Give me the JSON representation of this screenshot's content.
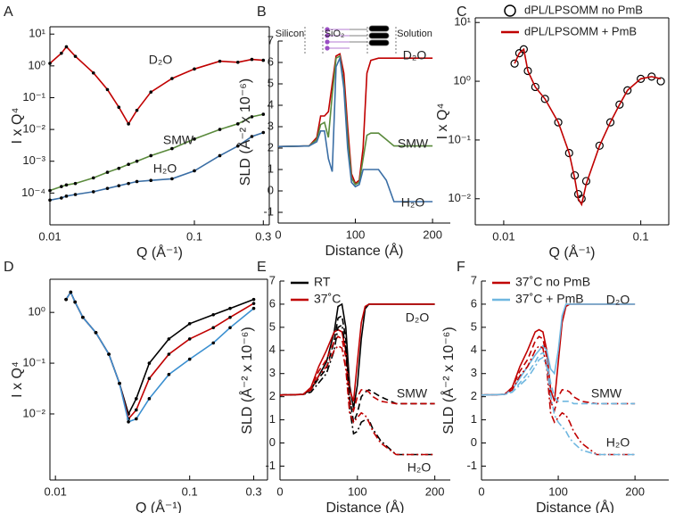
{
  "chart_data": [
    {
      "type": "line",
      "panel": "A",
      "xlabel": "Q (Å⁻¹)",
      "ylabel": "I x Q⁴",
      "xscale": "log",
      "yscale": "log",
      "box": true,
      "xlim": [
        0.01,
        0.33
      ],
      "ylim": [
        1e-05,
        17
      ],
      "xticks": [
        0.01,
        0.1,
        0.3
      ],
      "yticks": [
        {
          "value": 0.0001,
          "label": "10⁻⁴"
        },
        {
          "value": 0.001,
          "label": "10⁻³"
        },
        {
          "value": 0.01,
          "label": "10⁻²"
        },
        {
          "value": 0.1,
          "label": "10⁻¹"
        },
        {
          "value": 1,
          "label": "10⁰"
        },
        {
          "value": 10,
          "label": "10¹"
        }
      ],
      "x": [
        0.01,
        0.012,
        0.013,
        0.015,
        0.02,
        0.025,
        0.03,
        0.035,
        0.04,
        0.05,
        0.07,
        0.1,
        0.15,
        0.2,
        0.25,
        0.3
      ],
      "series": [
        {
          "name": "D₂O",
          "color": "#c00000",
          "marker": "dot",
          "values": [
            1.2,
            2.5,
            4,
            2,
            0.6,
            0.18,
            0.05,
            0.015,
            0.04,
            0.15,
            0.4,
            0.8,
            1.4,
            1.3,
            1.6,
            1.5
          ]
        },
        {
          "name": "SMW",
          "color": "#5a8a3c",
          "marker": "dot",
          "values": [
            0.00012,
            0.00016,
            0.00018,
            0.0002,
            0.0003,
            0.00045,
            0.0006,
            0.0008,
            0.001,
            0.0015,
            0.0025,
            0.005,
            0.01,
            0.015,
            0.025,
            0.03
          ]
        },
        {
          "name": "H₂O",
          "color": "#3a6ea5",
          "marker": "dot",
          "values": [
            6e-05,
            7e-05,
            8e-05,
            9e-05,
            0.00011,
            0.00014,
            0.00017,
            0.0002,
            0.00023,
            0.00025,
            0.00028,
            0.0005,
            0.0015,
            0.003,
            0.006,
            0.008
          ]
        }
      ]
    },
    {
      "type": "line",
      "panel": "B",
      "xlabel": "Distance (Å)",
      "ylabel": "SLD (Å⁻² x 10⁻⁶)",
      "box": false,
      "annotations": [
        "Silicon",
        "SiO₂",
        "Solution"
      ],
      "xlim": [
        0,
        223
      ],
      "ylim": [
        -1.5,
        7
      ],
      "xticks": [
        0,
        100,
        200
      ],
      "yticks": [
        -1,
        0,
        1,
        2,
        3,
        4,
        5,
        6,
        7
      ],
      "x": [
        0,
        40,
        50,
        55,
        60,
        65,
        70,
        75,
        80,
        85,
        90,
        95,
        100,
        105,
        110,
        115,
        120,
        130,
        140,
        150,
        200
      ],
      "series": [
        {
          "name": "D₂O",
          "color": "#c00000",
          "values": [
            2.07,
            2.1,
            2.5,
            3.5,
            3.5,
            3.7,
            5,
            6.3,
            6.4,
            5.5,
            3,
            0.8,
            0.35,
            0.5,
            2,
            5.5,
            6.1,
            6.2,
            6.2,
            6.2,
            6.2
          ]
        },
        {
          "name": "SMW",
          "color": "#5a8a3c",
          "values": [
            2.07,
            2.1,
            2.4,
            3.1,
            3.2,
            2.5,
            4.5,
            6.2,
            6.3,
            5,
            2.5,
            0.6,
            0.3,
            0.4,
            1.5,
            2.6,
            2.7,
            2.7,
            2.4,
            2.1,
            2.1
          ]
        },
        {
          "name": "H₂O",
          "color": "#3a6ea5",
          "values": [
            2.07,
            2.1,
            2.3,
            2.8,
            2.8,
            1.5,
            0.9,
            5.8,
            6.2,
            4.8,
            2,
            0.4,
            0.2,
            0.3,
            1,
            1,
            1,
            1,
            0.5,
            -0.5,
            -0.5
          ]
        }
      ]
    },
    {
      "type": "line",
      "panel": "C",
      "xlabel": "Q (Å⁻¹)",
      "ylabel": "I x Q⁴",
      "xscale": "log",
      "yscale": "log",
      "box": true,
      "xlim": [
        0.0062,
        0.16
      ],
      "ylim": [
        0.0036,
        12
      ],
      "xticks": [
        0.01,
        0.1
      ],
      "yticks": [
        {
          "value": 0.01,
          "label": "10⁻²"
        },
        {
          "value": 0.1,
          "label": "10⁻¹"
        },
        {
          "value": 1,
          "label": "10⁰"
        },
        {
          "value": 10,
          "label": "10¹"
        }
      ],
      "legend": "top-right",
      "x": [
        0.012,
        0.013,
        0.014,
        0.015,
        0.017,
        0.02,
        0.025,
        0.03,
        0.033,
        0.035,
        0.037,
        0.04,
        0.05,
        0.06,
        0.07,
        0.08,
        0.1,
        0.12,
        0.14
      ],
      "series": [
        {
          "name": "dPL/LPSOMM no PmB",
          "color": "#000000",
          "marker": "open-circle",
          "line": false,
          "values": [
            2,
            3,
            3.5,
            1.5,
            0.8,
            0.5,
            0.2,
            0.06,
            0.025,
            0.012,
            0.01,
            0.02,
            0.08,
            0.2,
            0.4,
            0.7,
            1.1,
            1.2,
            1
          ]
        },
        {
          "name": "dPL/LPSOMM + PmB",
          "color": "#c00000",
          "values": [
            2,
            3,
            3.5,
            1.5,
            0.8,
            0.5,
            0.2,
            0.06,
            0.022,
            0.01,
            0.008,
            0.018,
            0.08,
            0.2,
            0.4,
            0.7,
            1.1,
            1.2,
            1.1
          ]
        }
      ]
    },
    {
      "type": "line",
      "panel": "D",
      "xlabel": "Q (Å⁻¹)",
      "ylabel": "I x Q⁴",
      "xscale": "log",
      "yscale": "log",
      "box": true,
      "xlim": [
        0.0091,
        0.38
      ],
      "ylim": [
        0.0005,
        4.5
      ],
      "xticks": [
        0.01,
        0.1,
        0.3
      ],
      "yticks": [
        {
          "value": 0.01,
          "label": "10⁻²"
        },
        {
          "value": 0.1,
          "label": "10⁻¹"
        },
        {
          "value": 1,
          "label": "10⁰"
        }
      ],
      "x": [
        0.012,
        0.013,
        0.014,
        0.016,
        0.02,
        0.025,
        0.03,
        0.035,
        0.04,
        0.05,
        0.07,
        0.1,
        0.15,
        0.2,
        0.3
      ],
      "series": [
        {
          "color": "#000000",
          "marker": "dot",
          "values": [
            1.8,
            2.5,
            1.6,
            0.8,
            0.4,
            0.15,
            0.04,
            0.01,
            0.02,
            0.1,
            0.3,
            0.6,
            0.9,
            1.2,
            1.8
          ]
        },
        {
          "color": "#c00000",
          "marker": "dot",
          "values": [
            1.8,
            2.5,
            1.6,
            0.8,
            0.4,
            0.15,
            0.04,
            0.008,
            0.012,
            0.05,
            0.15,
            0.3,
            0.5,
            0.8,
            1.5
          ]
        },
        {
          "color": "#3a8fd0",
          "marker": "dot",
          "values": [
            1.8,
            2.5,
            1.6,
            0.8,
            0.4,
            0.15,
            0.04,
            0.007,
            0.008,
            0.02,
            0.06,
            0.12,
            0.25,
            0.5,
            1.2
          ]
        }
      ]
    },
    {
      "type": "line",
      "panel": "E",
      "xlabel": "Distance (Å)",
      "ylabel": "SLD (Å⁻² x 10⁻⁶)",
      "box": false,
      "annotations": [
        "D₂O",
        "SMW",
        "H₂O"
      ],
      "legend": [
        {
          "name": "RT",
          "color": "#000000"
        },
        {
          "name": "37˚C",
          "color": "#c00000"
        }
      ],
      "xlim": [
        0,
        220
      ],
      "ylim": [
        -1.6,
        7
      ],
      "xticks": [
        0,
        100,
        200
      ],
      "yticks": [
        -1,
        0,
        1,
        2,
        3,
        4,
        5,
        6,
        7
      ],
      "x": [
        0,
        30,
        40,
        50,
        60,
        70,
        75,
        80,
        85,
        90,
        95,
        100,
        105,
        110,
        115,
        120,
        130,
        150,
        200
      ],
      "series": [
        {
          "color": "#000000",
          "dash": "solid",
          "values": [
            2.07,
            2.1,
            2.3,
            2.9,
            3.5,
            4.8,
            5.9,
            6,
            5,
            2.5,
            1.5,
            2.5,
            4.5,
            5.8,
            6,
            6,
            6,
            6,
            6
          ]
        },
        {
          "color": "#c00000",
          "dash": "solid",
          "values": [
            2.07,
            2.1,
            2.4,
            3.3,
            4,
            4.8,
            4.9,
            4.8,
            4,
            2.3,
            1.8,
            3.5,
            5.2,
            5.9,
            6,
            6,
            6,
            6,
            6
          ]
        },
        {
          "color": "#000000",
          "dash": "dashed",
          "values": [
            2.07,
            2.1,
            2.3,
            2.8,
            3.2,
            4.4,
            5.4,
            5.5,
            4.5,
            2,
            0.9,
            1.3,
            2,
            2.2,
            2.3,
            2.2,
            2,
            1.7,
            1.7
          ]
        },
        {
          "color": "#c00000",
          "dash": "dashed",
          "values": [
            2.07,
            2.1,
            2.4,
            3.1,
            3.6,
            4.4,
            4.6,
            4.5,
            3.7,
            1.8,
            1.4,
            2,
            2.3,
            2.3,
            2.2,
            2,
            1.8,
            1.7,
            1.7
          ]
        },
        {
          "color": "#000000",
          "dash": "dashdot",
          "values": [
            2.07,
            2.1,
            2.2,
            2.6,
            3,
            4,
            5,
            5.1,
            4.1,
            1.5,
            0.4,
            0.5,
            0.9,
            1,
            1,
            0.6,
            0.1,
            -0.5,
            -0.5
          ]
        },
        {
          "color": "#c00000",
          "dash": "dashdot",
          "values": [
            2.07,
            2.1,
            2.3,
            2.9,
            3.3,
            4,
            4.2,
            4.1,
            3.2,
            1.3,
            0.9,
            1.1,
            1.3,
            1.2,
            0.9,
            0.5,
            0,
            -0.5,
            -0.5
          ]
        }
      ]
    },
    {
      "type": "line",
      "panel": "F",
      "xlabel": "Distance (Å)",
      "ylabel": "SLD (Å⁻² x 10⁻⁶)",
      "box": false,
      "annotations": [
        "D₂O",
        "SMW",
        "H₂O"
      ],
      "legend": [
        {
          "name": "37˚C no PmB",
          "color": "#c00000"
        },
        {
          "name": "37˚C + PmB",
          "color": "#6fb7e0"
        }
      ],
      "xlim": [
        0,
        244
      ],
      "ylim": [
        -1.6,
        7
      ],
      "xticks": [
        0,
        100,
        200
      ],
      "yticks": [
        -1,
        0,
        1,
        2,
        3,
        4,
        5,
        6,
        7
      ],
      "x": [
        0,
        30,
        40,
        50,
        60,
        70,
        75,
        80,
        85,
        90,
        95,
        100,
        105,
        110,
        115,
        120,
        130,
        150,
        200
      ],
      "series": [
        {
          "color": "#c00000",
          "dash": "solid",
          "values": [
            2.07,
            2.1,
            2.4,
            3.3,
            4,
            4.8,
            4.9,
            4.8,
            4,
            2.3,
            1.8,
            3.5,
            5.2,
            5.9,
            6,
            6,
            6,
            6,
            6
          ]
        },
        {
          "color": "#6fb7e0",
          "dash": "solid",
          "values": [
            2.07,
            2.1,
            2.3,
            2.8,
            3.3,
            3.8,
            4,
            4.2,
            4,
            3.2,
            3,
            4,
            5.5,
            6,
            6,
            6,
            6,
            6,
            6
          ]
        },
        {
          "color": "#c00000",
          "dash": "dashed",
          "values": [
            2.07,
            2.1,
            2.4,
            3.1,
            3.6,
            4.4,
            4.6,
            4.5,
            3.7,
            1.8,
            1.4,
            2,
            2.3,
            2.3,
            2.2,
            2,
            1.8,
            1.7,
            1.7
          ]
        },
        {
          "color": "#6fb7e0",
          "dash": "dashed",
          "values": [
            2.07,
            2.1,
            2.2,
            2.6,
            3,
            3.5,
            3.8,
            3.9,
            3.6,
            2.6,
            2,
            1.8,
            1.8,
            1.8,
            1.8,
            1.7,
            1.7,
            1.7,
            1.7
          ]
        },
        {
          "color": "#c00000",
          "dash": "dashdot",
          "values": [
            2.07,
            2.1,
            2.3,
            2.9,
            3.3,
            4,
            4.2,
            4.1,
            3.2,
            1.3,
            0.9,
            1.1,
            1.3,
            1.2,
            0.9,
            0.5,
            0,
            -0.5,
            -0.5
          ]
        },
        {
          "color": "#6fb7e0",
          "dash": "dashdot",
          "values": [
            2.07,
            2.1,
            2.2,
            2.5,
            2.8,
            3.3,
            3.6,
            3.7,
            3.3,
            2.1,
            1.2,
            0.9,
            0.7,
            0.5,
            0.2,
            0,
            -0.3,
            -0.5,
            -0.5
          ]
        }
      ]
    }
  ]
}
